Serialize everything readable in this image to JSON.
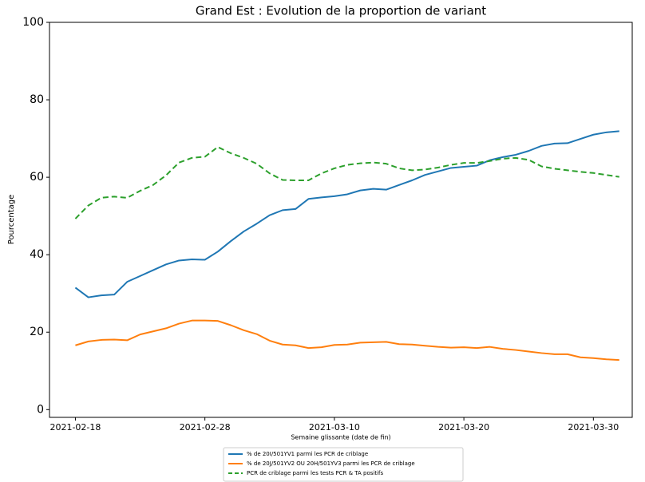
{
  "chart_data": {
    "type": "line",
    "title": "Grand Est : Evolution de la proportion de variant",
    "xlabel": "Semaine glissante (date de fin)",
    "ylabel": "Pourcentage",
    "x": [
      "2021-02-18",
      "2021-02-19",
      "2021-02-20",
      "2021-02-21",
      "2021-02-22",
      "2021-02-23",
      "2021-02-24",
      "2021-02-25",
      "2021-02-26",
      "2021-02-27",
      "2021-02-28",
      "2021-03-01",
      "2021-03-02",
      "2021-03-03",
      "2021-03-04",
      "2021-03-05",
      "2021-03-06",
      "2021-03-07",
      "2021-03-08",
      "2021-03-09",
      "2021-03-10",
      "2021-03-11",
      "2021-03-12",
      "2021-03-13",
      "2021-03-14",
      "2021-03-15",
      "2021-03-16",
      "2021-03-17",
      "2021-03-18",
      "2021-03-19",
      "2021-03-20",
      "2021-03-21",
      "2021-03-22",
      "2021-03-23",
      "2021-03-24",
      "2021-03-25",
      "2021-03-26",
      "2021-03-27",
      "2021-03-28",
      "2021-03-29",
      "2021-03-30",
      "2021-03-31",
      "2021-04-01"
    ],
    "series": [
      {
        "name": "% de 20I/501YV1 parmi les PCR de criblage",
        "color": "#1f77b4",
        "linestyle": "solid",
        "values": [
          31.5,
          29,
          29.5,
          29.7,
          33,
          34.5,
          36,
          37.5,
          38.5,
          38.8,
          38.7,
          40.8,
          43.5,
          46,
          48,
          50.2,
          51.5,
          51.8,
          54.4,
          54.8,
          55.1,
          55.6,
          56.6,
          57,
          56.8,
          58,
          59.2,
          60.6,
          61.5,
          62.4,
          62.7,
          63,
          64.4,
          65.2,
          65.8,
          66.8,
          68.1,
          68.7,
          68.8,
          69.9,
          71,
          71.6,
          71.9
        ]
      },
      {
        "name": "% de 20J/501YV2 OU 20H/501YV3 parmi les PCR de criblage",
        "color": "#ff7f0e",
        "linestyle": "solid",
        "values": [
          16.6,
          17.6,
          18,
          18.1,
          17.9,
          19.4,
          20.2,
          21,
          22.2,
          23,
          23,
          22.9,
          21.8,
          20.5,
          19.5,
          17.8,
          16.8,
          16.6,
          15.9,
          16.1,
          16.7,
          16.8,
          17.3,
          17.4,
          17.5,
          16.9,
          16.8,
          16.5,
          16.2,
          16,
          16.1,
          15.9,
          16.2,
          15.7,
          15.4,
          15,
          14.6,
          14.3,
          14.3,
          13.5,
          13.3,
          13,
          12.8
        ]
      },
      {
        "name": "PCR de criblage parmi les tests PCR & TA positifs",
        "color": "#2ca02c",
        "linestyle": "dashed",
        "values": [
          49.3,
          52.7,
          54.7,
          55,
          54.7,
          56.5,
          58,
          60.5,
          63.8,
          65,
          65.3,
          67.8,
          66.2,
          65,
          63.5,
          61,
          59.3,
          59.2,
          59.2,
          61,
          62.3,
          63.2,
          63.6,
          63.8,
          63.5,
          62.3,
          61.8,
          62,
          62.5,
          63.2,
          63.7,
          63.7,
          64.2,
          64.8,
          65,
          64.5,
          62.8,
          62.2,
          61.8,
          61.4,
          61.1,
          60.6,
          60.1
        ]
      }
    ],
    "xlim": [
      "2021-02-16",
      "2021-04-02"
    ],
    "xticks": [
      "2021-02-18",
      "2021-02-28",
      "2021-03-10",
      "2021-03-20",
      "2021-03-30"
    ],
    "ylim": [
      -2,
      100
    ],
    "yticks": [
      0,
      20,
      40,
      60,
      80,
      100
    ],
    "grid": false,
    "legend": "lower center"
  }
}
